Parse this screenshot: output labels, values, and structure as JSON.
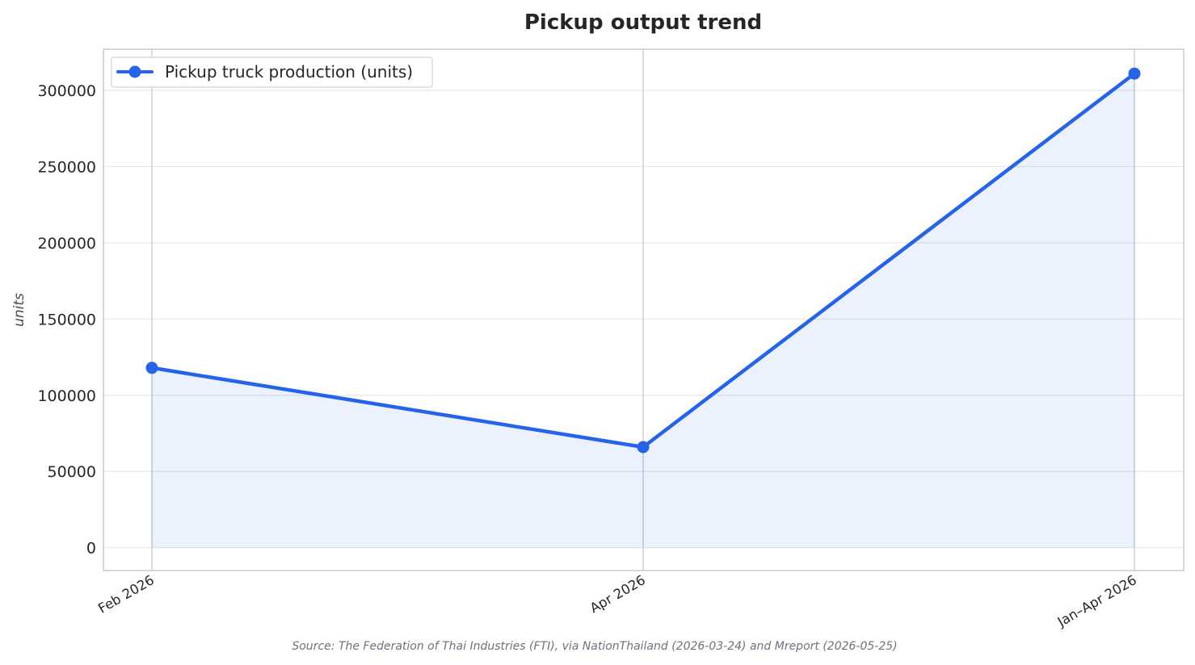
{
  "chart_data": {
    "type": "area",
    "title": "Pickup output trend",
    "xlabel": "",
    "ylabel": "units",
    "categories": [
      "Feb 2026",
      "Apr 2026",
      "Jan–Apr 2026"
    ],
    "series": [
      {
        "name": "Pickup truck production (units)",
        "values": [
          118000,
          66000,
          311000
        ]
      }
    ],
    "yticks": [
      0,
      50000,
      100000,
      150000,
      200000,
      250000,
      300000
    ],
    "ytick_labels": [
      "0",
      "50000",
      "100000",
      "150000",
      "200000",
      "250000",
      "300000"
    ],
    "ylim": [
      -15000,
      327000
    ],
    "grid": true,
    "legend_position": "top-left",
    "source": "Source: The Federation of Thai Industries (FTI), via NationThailand (2026-03-24) and Mreport (2026-05-25)",
    "colors": {
      "line": "#2563eb",
      "fill": "#2563eb",
      "grid": "#e5e7eb",
      "frame": "#c8cbd1"
    }
  }
}
